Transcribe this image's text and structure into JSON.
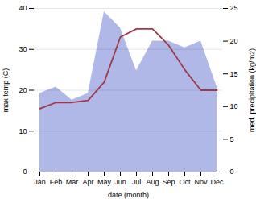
{
  "chart_data": {
    "type": "line",
    "categories": [
      "Jan",
      "Feb",
      "Mar",
      "Apr",
      "May",
      "Jun",
      "Jul",
      "Aug",
      "Sep",
      "Oct",
      "Nov",
      "Dec"
    ],
    "series": [
      {
        "type": "area",
        "axis": "y2",
        "color": "#b0b8e8",
        "values": [
          12.0,
          13.0,
          11.0,
          12.0,
          24.5,
          22.0,
          15.5,
          20.0,
          20.0,
          19.0,
          20.0,
          13.0
        ]
      },
      {
        "type": "line",
        "color": "#a03848",
        "values": [
          15.5,
          17.0,
          17.0,
          17.5,
          22.0,
          33.0,
          35.0,
          35.0,
          31.0,
          25.0,
          20.0,
          20.0
        ]
      }
    ],
    "xlabel": "date (month)",
    "ylabel": "max temp (C)",
    "y2label": "med. precipitation (kg/m2)",
    "ylim": [
      0,
      40
    ],
    "yticks": [
      0,
      10,
      20,
      30,
      40
    ],
    "y2lim": [
      0,
      25
    ],
    "y2ticks": [
      0,
      5,
      10,
      15,
      20,
      25
    ],
    "grid": true
  }
}
